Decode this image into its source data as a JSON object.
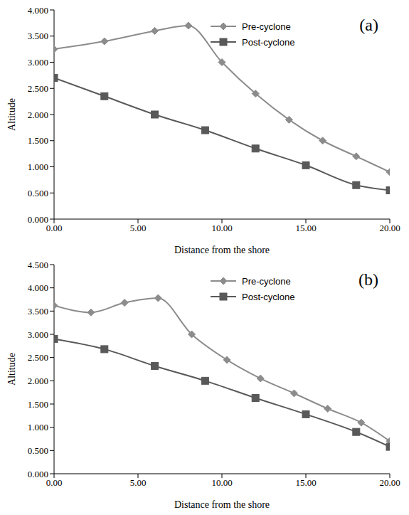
{
  "chart_data": [
    {
      "type": "line",
      "annotation": "(a)",
      "x_label": "Distance from the shore",
      "y_label": "Altitude",
      "xlim": [
        0,
        20
      ],
      "ylim": [
        0,
        4
      ],
      "xticks": [
        {
          "value": 0,
          "label": "0.00"
        },
        {
          "value": 5,
          "label": "5.00"
        },
        {
          "value": 10,
          "label": "10.00"
        },
        {
          "value": 15,
          "label": "15.00"
        },
        {
          "value": 20,
          "label": "20.00"
        }
      ],
      "yticks": [
        {
          "value": 0,
          "label": "0.000"
        },
        {
          "value": 0.5,
          "label": "0.500"
        },
        {
          "value": 1,
          "label": "1.000"
        },
        {
          "value": 1.5,
          "label": "1.500"
        },
        {
          "value": 2,
          "label": "2.000"
        },
        {
          "value": 2.5,
          "label": "2.500"
        },
        {
          "value": 3,
          "label": "3.000"
        },
        {
          "value": 3.5,
          "label": "3.500"
        },
        {
          "value": 4,
          "label": "4.000"
        }
      ],
      "grid": false,
      "legend": "top right",
      "series": [
        {
          "name": "Pre-cyclone",
          "color": "#8c8c8c",
          "marker": "diamond",
          "x": [
            0,
            3,
            6,
            8,
            10,
            12,
            14,
            16,
            18,
            20
          ],
          "values": [
            3.25,
            3.4,
            3.6,
            3.7,
            3.0,
            2.4,
            1.9,
            1.5,
            1.2,
            0.9
          ]
        },
        {
          "name": "Post-cyclone",
          "color": "#595959",
          "marker": "square",
          "x": [
            0,
            3,
            6,
            9,
            12,
            15,
            18,
            20
          ],
          "values": [
            2.7,
            2.35,
            2.0,
            1.7,
            1.35,
            1.03,
            0.65,
            0.55
          ]
        }
      ]
    },
    {
      "type": "line",
      "annotation": "(b)",
      "x_label": "Distance from the shore",
      "y_label": "Altitude",
      "xlim": [
        0,
        20
      ],
      "ylim": [
        0,
        4.5
      ],
      "xticks": [
        {
          "value": 0,
          "label": "0.00"
        },
        {
          "value": 5,
          "label": "5.00"
        },
        {
          "value": 10,
          "label": "10.00"
        },
        {
          "value": 15,
          "label": "15.00"
        },
        {
          "value": 20,
          "label": "20.00"
        }
      ],
      "yticks": [
        {
          "value": 0,
          "label": "0.000"
        },
        {
          "value": 0.5,
          "label": "0.500"
        },
        {
          "value": 1,
          "label": "1.000"
        },
        {
          "value": 1.5,
          "label": "1.500"
        },
        {
          "value": 2,
          "label": "2.000"
        },
        {
          "value": 2.5,
          "label": "2.500"
        },
        {
          "value": 3,
          "label": "3.000"
        },
        {
          "value": 3.5,
          "label": "3.500"
        },
        {
          "value": 4,
          "label": "4.000"
        },
        {
          "value": 4.5,
          "label": "4.500"
        }
      ],
      "grid": false,
      "legend": "top right",
      "series": [
        {
          "name": "Pre-cyclone",
          "color": "#8c8c8c",
          "marker": "diamond",
          "x": [
            0,
            2.2,
            4.2,
            6.2,
            8.2,
            10.3,
            12.3,
            14.3,
            16.3,
            18.3,
            20
          ],
          "values": [
            3.62,
            3.47,
            3.68,
            3.78,
            3.0,
            2.45,
            2.05,
            1.73,
            1.4,
            1.1,
            0.7
          ]
        },
        {
          "name": "Post-cyclone",
          "color": "#595959",
          "marker": "square",
          "x": [
            0,
            3,
            6,
            9,
            12,
            15,
            18,
            20
          ],
          "values": [
            2.9,
            2.68,
            2.32,
            2.0,
            1.63,
            1.28,
            0.9,
            0.58
          ]
        }
      ]
    }
  ]
}
